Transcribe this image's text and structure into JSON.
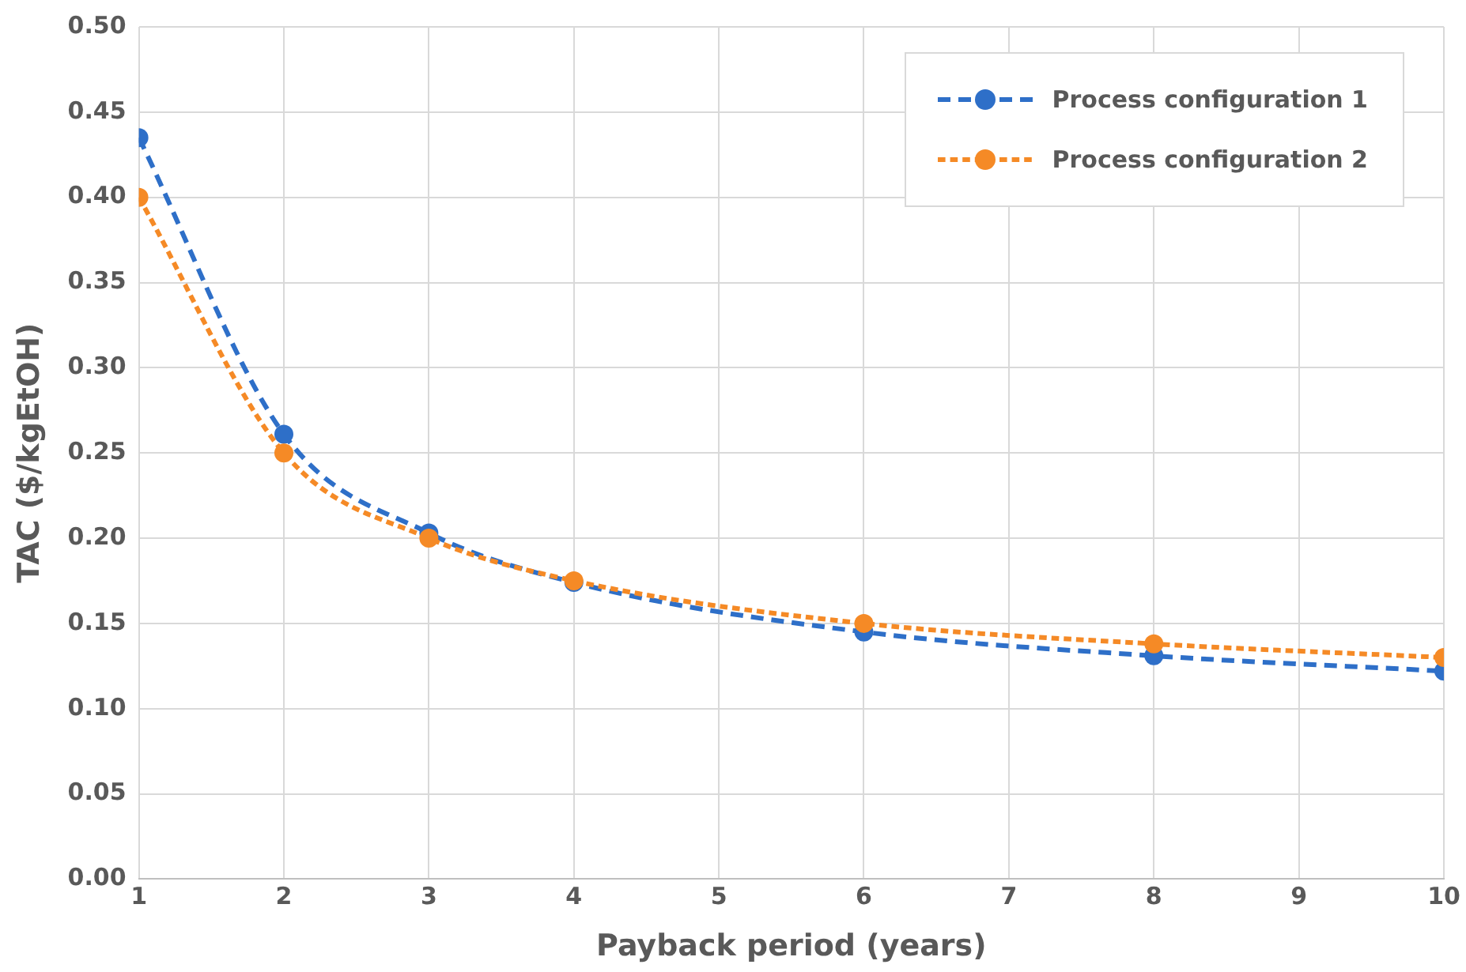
{
  "chart_data": {
    "type": "line",
    "xlabel": "Payback period (years)",
    "ylabel": "TAC ($/kgEtOH)",
    "x": [
      1,
      2,
      3,
      4,
      6,
      8,
      10
    ],
    "series": [
      {
        "name": "Process configuration 1",
        "color": "#2e6fc8",
        "values": [
          0.435,
          0.261,
          0.203,
          0.174,
          0.145,
          0.131,
          0.122
        ]
      },
      {
        "name": "Process configuration 2",
        "color": "#f58a26",
        "values": [
          0.4,
          0.25,
          0.2,
          0.175,
          0.15,
          0.138,
          0.13
        ]
      }
    ],
    "xlim": [
      1,
      10
    ],
    "xticks": [
      1,
      2,
      3,
      4,
      5,
      6,
      7,
      8,
      9,
      10
    ],
    "ylim": [
      0,
      0.5
    ],
    "yticks": [
      {
        "value": 0,
        "label": "0.00"
      },
      {
        "value": 0.05,
        "label": "0.05"
      },
      {
        "value": 0.1,
        "label": "0.10"
      },
      {
        "value": 0.15,
        "label": "0.15"
      },
      {
        "value": 0.2,
        "label": "0.20"
      },
      {
        "value": 0.25,
        "label": "0.25"
      },
      {
        "value": 0.3,
        "label": "0.30"
      },
      {
        "value": 0.35,
        "label": "0.35"
      },
      {
        "value": 0.4,
        "label": "0.40"
      },
      {
        "value": 0.45,
        "label": "0.45"
      },
      {
        "value": 0.5,
        "label": "0.50"
      }
    ],
    "grid": true,
    "legend": "top right",
    "marker": "circle",
    "line_style": "dashed"
  }
}
